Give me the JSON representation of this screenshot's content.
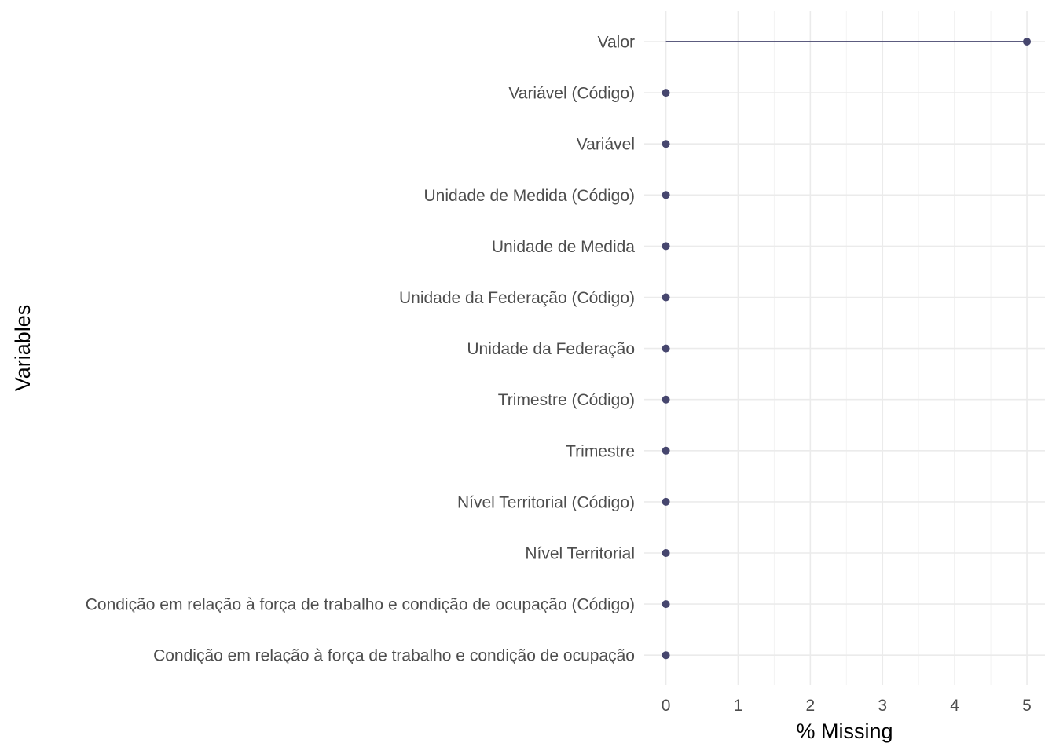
{
  "chart_data": {
    "type": "lollipop",
    "orientation": "horizontal",
    "title": "",
    "xlabel": "% Missing",
    "ylabel": "Variables",
    "xlim": [
      -0.3,
      5.25
    ],
    "xticks": [
      0,
      1,
      2,
      3,
      4,
      5
    ],
    "grid": true,
    "legend": "none",
    "point_color": "#46466e",
    "line_color": "#46466e",
    "categories": [
      "Valor",
      "Variável (Código)",
      "Variável",
      "Unidade de Medida (Código)",
      "Unidade de Medida",
      "Unidade da Federação (Código)",
      "Unidade da Federação",
      "Trimestre (Código)",
      "Trimestre",
      "Nível Territorial (Código)",
      "Nível Territorial",
      "Condição em relação à força de trabalho e condição de ocupação (Código)",
      "Condição em relação à força de trabalho e condição de ocupação"
    ],
    "values": [
      5,
      0,
      0,
      0,
      0,
      0,
      0,
      0,
      0,
      0,
      0,
      0,
      0
    ]
  }
}
